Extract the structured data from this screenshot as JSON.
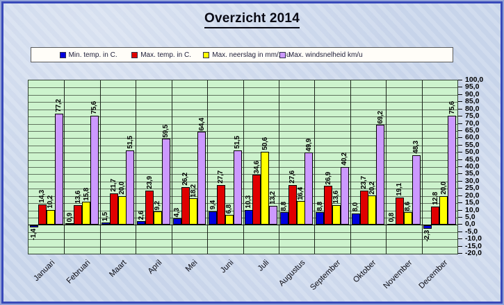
{
  "window": {
    "title": "Overzicht 2014"
  },
  "legend": {
    "position": "top"
  },
  "chart_data": {
    "type": "bar",
    "title": "Overzicht 2014",
    "categories": [
      "Januari",
      "Februari",
      "Maart",
      "April",
      "Mei",
      "Juni",
      "Juli",
      "Augustus",
      "September",
      "Oktober",
      "November",
      "December"
    ],
    "series": [
      {
        "name": "Min. temp. in C.",
        "color": "#0000dd",
        "values": [
          -1.4,
          0.9,
          1.5,
          2.6,
          4.3,
          9.4,
          10.3,
          8.8,
          8.8,
          8.0,
          0.8,
          -2.3
        ]
      },
      {
        "name": "Max. temp. in C.",
        "color": "#e00000",
        "values": [
          14.3,
          13.6,
          21.7,
          23.9,
          26.2,
          27.7,
          34.6,
          27.6,
          26.9,
          23.7,
          19.1,
          12.8
        ]
      },
      {
        "name": "Max. neerslag in mm/24u",
        "color": "#ffff00",
        "values": [
          10.2,
          15.8,
          20.0,
          9.2,
          18.2,
          6.8,
          50.6,
          16.4,
          13.6,
          20.2,
          8.6,
          20.0
        ]
      },
      {
        "name": "Max. windsnelheid km/u",
        "color": "#cc99ff",
        "values": [
          77.2,
          75.6,
          51.5,
          59.5,
          64.4,
          51.5,
          13.2,
          49.9,
          40.2,
          69.2,
          48.3,
          75.6
        ]
      }
    ],
    "ylim": [
      -20,
      100
    ],
    "ytick_step": 5,
    "grid": true,
    "legend_position": "top",
    "decimal_separator": ",",
    "value_labels": "all bars, rotated 90deg",
    "axis_side": "right"
  },
  "colors": {
    "plot_background": "#cdf3cd",
    "page_background": "#ccd8ec",
    "frame_border": "#3849b9"
  }
}
